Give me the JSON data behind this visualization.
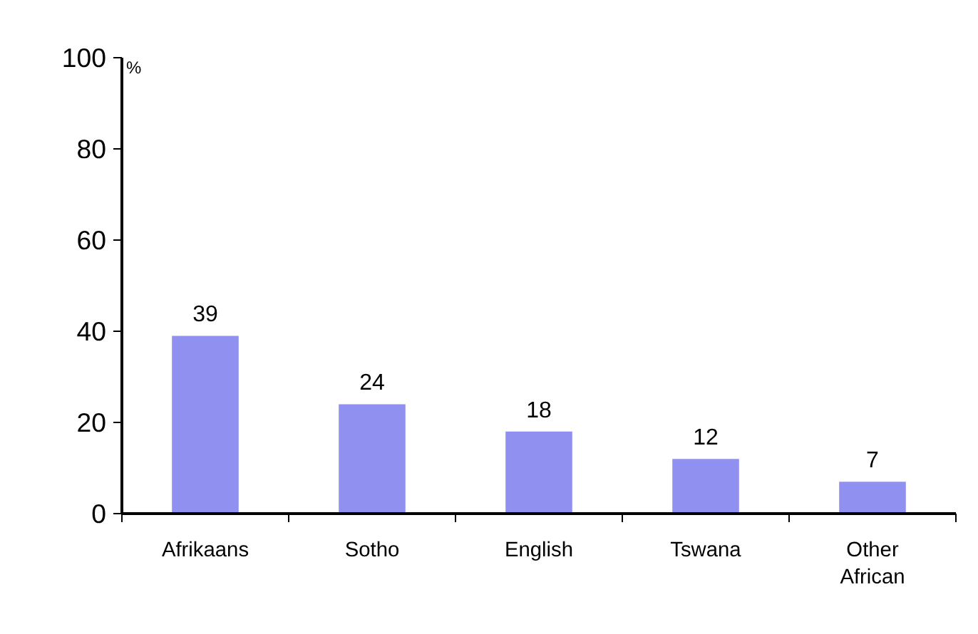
{
  "chart_data": {
    "type": "bar",
    "ylabel": "%",
    "categories": [
      "Afrikaans",
      "Sotho",
      "English",
      "Tswana",
      "Other African"
    ],
    "values": [
      39,
      24,
      18,
      12,
      7
    ],
    "color": "#9090f0",
    "ylim": [
      0,
      100
    ],
    "yticks": [
      0,
      20,
      40,
      60,
      80,
      100
    ],
    "data_labels": true,
    "grid": false
  }
}
